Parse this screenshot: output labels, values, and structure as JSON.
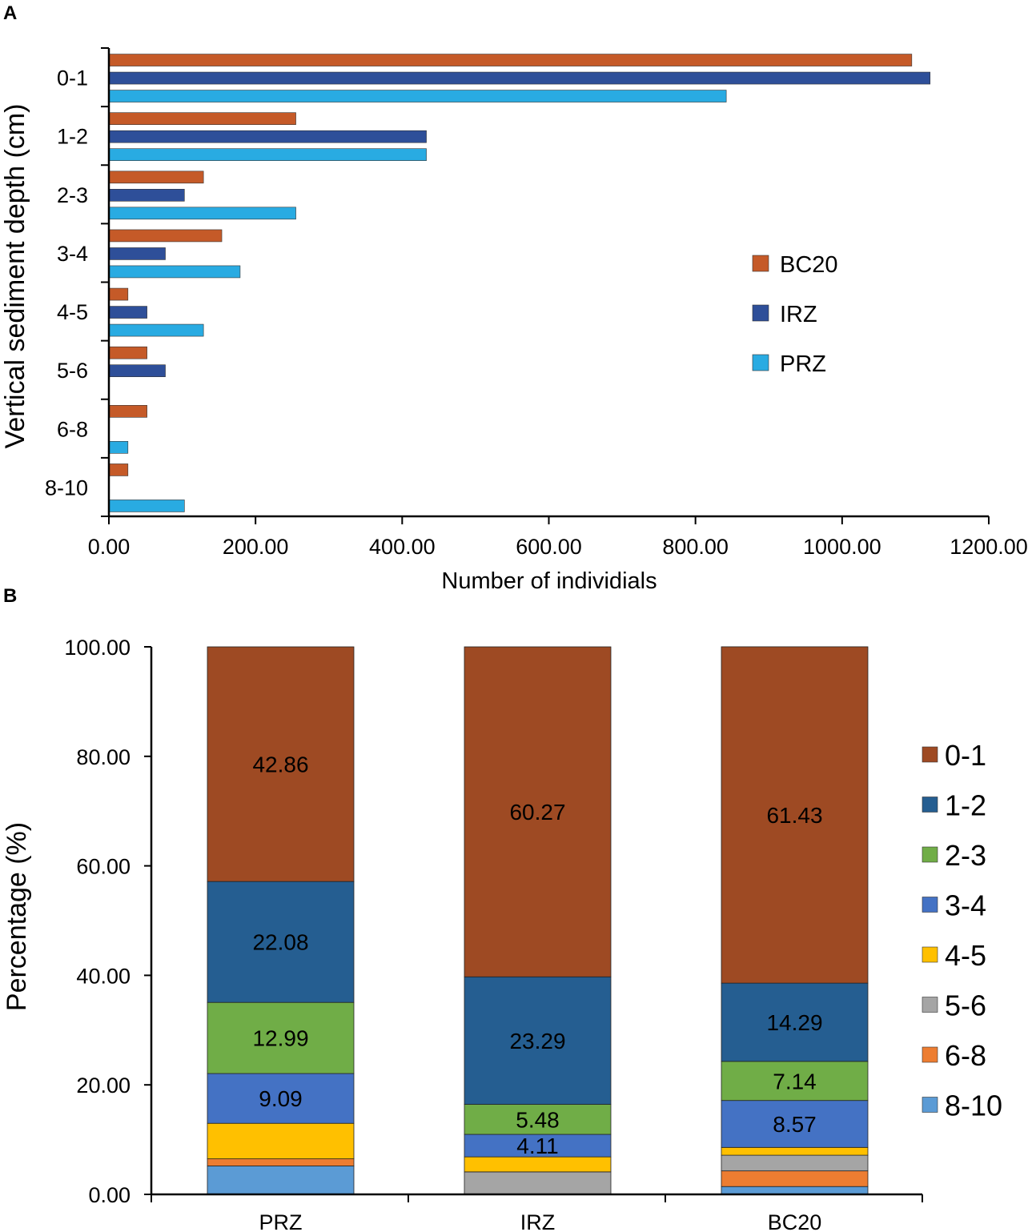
{
  "chart_data": [
    {
      "type": "bar",
      "orientation": "horizontal",
      "panel_label": "A",
      "xlabel": "Number of individials",
      "ylabel": "Vertical sediment depth (cm)",
      "xlim": [
        0,
        1200
      ],
      "xticks": [
        "0.00",
        "200.00",
        "400.00",
        "600.00",
        "800.00",
        "1000.00",
        "1200.00"
      ],
      "categories": [
        "0-1",
        "1-2",
        "2-3",
        "3-4",
        "4-5",
        "5-6",
        "6-8",
        "8-10"
      ],
      "legend_position": "right",
      "series": [
        {
          "name": "BC20",
          "color": "#c55a28",
          "values": [
            1095,
            255,
            129,
            154,
            26,
            52,
            52,
            26
          ]
        },
        {
          "name": "IRZ",
          "color": "#2e4f99",
          "values": [
            1120,
            433,
            103,
            77,
            52,
            77,
            0,
            0
          ]
        },
        {
          "name": "PRZ",
          "color": "#29abe2",
          "values": [
            842,
            433,
            255,
            179,
            129,
            0,
            26,
            103
          ]
        }
      ]
    },
    {
      "type": "bar",
      "stacked": true,
      "panel_label": "B",
      "ylabel": "Percentage (%)",
      "ylim": [
        0,
        100
      ],
      "yticks": [
        "0.00",
        "20.00",
        "40.00",
        "60.00",
        "80.00",
        "100.00"
      ],
      "categories": [
        "PRZ",
        "IRZ",
        "BC20"
      ],
      "legend_position": "right",
      "series": [
        {
          "name": "8-10",
          "color": "#5b9bd5",
          "values": [
            5.19,
            0,
            1.43
          ],
          "labels": [
            "",
            "",
            ""
          ]
        },
        {
          "name": "6-8",
          "color": "#ed7d31",
          "values": [
            1.3,
            0,
            2.86
          ],
          "labels": [
            "",
            "",
            ""
          ]
        },
        {
          "name": "5-6",
          "color": "#a5a5a5",
          "values": [
            0,
            4.11,
            2.86
          ],
          "labels": [
            "",
            "",
            ""
          ]
        },
        {
          "name": "4-5",
          "color": "#ffc000",
          "values": [
            6.49,
            2.74,
            1.43
          ],
          "labels": [
            "",
            "",
            ""
          ]
        },
        {
          "name": "3-4",
          "color": "#4472c4",
          "values": [
            9.09,
            4.11,
            8.57
          ],
          "labels": [
            "9.09",
            "4.11",
            "8.57"
          ]
        },
        {
          "name": "2-3",
          "color": "#70ad47",
          "values": [
            12.99,
            5.48,
            7.14
          ],
          "labels": [
            "12.99",
            "5.48",
            "7.14"
          ]
        },
        {
          "name": "1-2",
          "color": "#255e91",
          "values": [
            22.08,
            23.29,
            14.29
          ],
          "labels": [
            "22.08",
            "23.29",
            "14.29"
          ]
        },
        {
          "name": "0-1",
          "color": "#9e4a23",
          "values": [
            42.86,
            60.27,
            61.43
          ],
          "labels": [
            "42.86",
            "60.27",
            "61.43"
          ]
        }
      ]
    }
  ]
}
